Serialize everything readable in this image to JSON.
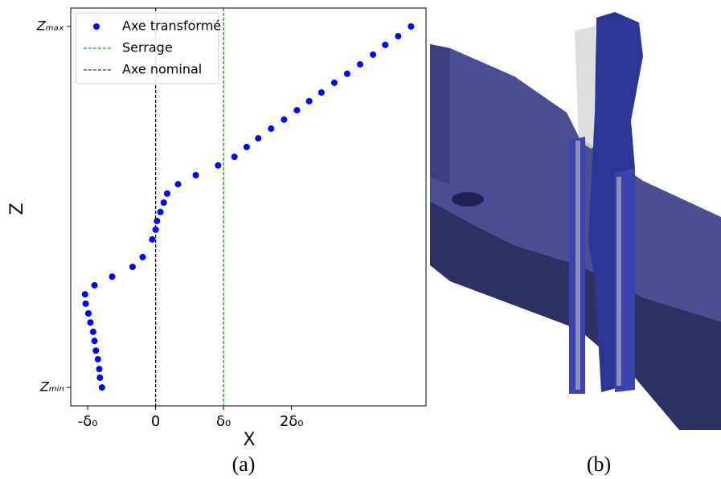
{
  "chart_data": {
    "type": "scatter",
    "x_label": "X",
    "y_label": "Z",
    "xlim": [
      -1.25,
      3.98
    ],
    "ylim": [
      -0.051,
      1.051
    ],
    "xticks": [
      {
        "value": -1,
        "label": "-δ₀"
      },
      0,
      {
        "value": 1,
        "label": "δ₀"
      },
      {
        "value": 2,
        "label": "2δ₀"
      }
    ],
    "yticks": [
      {
        "value": 0,
        "label": "Zₘᵢₙ"
      },
      {
        "value": 1,
        "label": "Zₘₐₓ"
      }
    ],
    "grid": false,
    "legend": "upper left",
    "series": [
      {
        "name": "Axe transformé",
        "color": "#0000ff",
        "x": [
          3.76,
          3.57,
          3.38,
          3.2,
          3.01,
          2.82,
          2.63,
          2.44,
          2.26,
          2.08,
          1.89,
          1.7,
          1.51,
          1.34,
          1.16,
          0.92,
          0.59,
          0.33,
          0.17,
          0.12,
          0.07,
          0.02,
          0.0,
          -0.05,
          -0.19,
          -0.34,
          -0.64,
          -0.9,
          -1.04,
          -1.03,
          -0.99,
          -0.96,
          -0.92,
          -0.9,
          -0.88,
          -0.85,
          -0.83,
          -0.82,
          -0.79
        ],
        "values": [
          1.0,
          0.973,
          0.949,
          0.922,
          0.895,
          0.869,
          0.844,
          0.817,
          0.793,
          0.768,
          0.742,
          0.717,
          0.69,
          0.666,
          0.639,
          0.615,
          0.588,
          0.563,
          0.537,
          0.512,
          0.486,
          0.461,
          0.437,
          0.41,
          0.361,
          0.334,
          0.307,
          0.283,
          0.258,
          0.232,
          0.205,
          0.18,
          0.154,
          0.129,
          0.102,
          0.078,
          0.051,
          0.027,
          0
        ]
      }
    ],
    "vlines": [
      {
        "name": "Serrage",
        "color": "#008000",
        "x": 1
      },
      {
        "name": "Axe nominal",
        "color": "#000000",
        "x": 0
      }
    ]
  },
  "captions": [
    "(a)",
    "(b)"
  ]
}
